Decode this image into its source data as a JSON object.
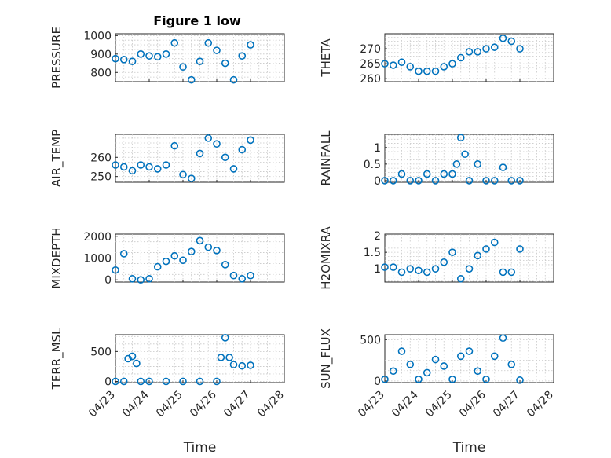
{
  "figure": {
    "title": "Figure 1 low",
    "marker_color": "#0072BD",
    "x_ticks": [
      "04/23",
      "04/24",
      "04/25",
      "04/26",
      "04/27",
      "04/28"
    ],
    "x_label": "Time"
  },
  "chart_data": [
    {
      "type": "scatter",
      "ylabel": "PRESSURE",
      "title": "Figure 1 low",
      "xlim": [
        "04/23",
        "04/28"
      ],
      "ylim": [
        750,
        1010
      ],
      "yticks": [
        800,
        900,
        1000
      ],
      "grid": true,
      "x": [
        "04/23 00:00",
        "04/23 06:00",
        "04/23 12:00",
        "04/23 18:00",
        "04/24 00:00",
        "04/24 06:00",
        "04/24 12:00",
        "04/24 18:00",
        "04/25 00:00",
        "04/25 06:00",
        "04/25 12:00",
        "04/25 18:00",
        "04/26 00:00",
        "04/26 06:00",
        "04/26 12:00",
        "04/26 18:00",
        "04/27 00:00"
      ],
      "y": [
        875,
        870,
        860,
        900,
        890,
        885,
        900,
        960,
        830,
        760,
        860,
        960,
        920,
        850,
        760,
        890,
        950
      ]
    },
    {
      "type": "scatter",
      "ylabel": "THETA",
      "xlim": [
        "04/23",
        "04/28"
      ],
      "ylim": [
        259,
        275
      ],
      "yticks": [
        260,
        265,
        270
      ],
      "grid": true,
      "x": [
        "04/23 00:00",
        "04/23 06:00",
        "04/23 12:00",
        "04/23 18:00",
        "04/24 00:00",
        "04/24 06:00",
        "04/24 12:00",
        "04/24 18:00",
        "04/25 00:00",
        "04/25 06:00",
        "04/25 12:00",
        "04/25 18:00",
        "04/26 00:00",
        "04/26 06:00",
        "04/26 12:00",
        "04/26 18:00",
        "04/27 00:00"
      ],
      "y": [
        265,
        264.5,
        265.5,
        264,
        262.5,
        262.5,
        262.5,
        264,
        265,
        267,
        269,
        269,
        270,
        270.5,
        273.5,
        272.5,
        270
      ]
    },
    {
      "type": "scatter",
      "ylabel": "AIR_TEMP",
      "xlim": [
        "04/23",
        "04/28"
      ],
      "ylim": [
        247,
        272
      ],
      "yticks": [
        250,
        260
      ],
      "grid": true,
      "x": [
        "04/23 00:00",
        "04/23 06:00",
        "04/23 12:00",
        "04/23 18:00",
        "04/24 00:00",
        "04/24 06:00",
        "04/24 12:00",
        "04/24 18:00",
        "04/25 00:00",
        "04/25 06:00",
        "04/25 12:00",
        "04/25 18:00",
        "04/26 00:00",
        "04/26 06:00",
        "04/26 12:00",
        "04/26 18:00",
        "04/27 00:00"
      ],
      "y": [
        256,
        255,
        253,
        256,
        255,
        254,
        256,
        266,
        251,
        249,
        262,
        270,
        267,
        260,
        254,
        264,
        269
      ]
    },
    {
      "type": "scatter",
      "ylabel": "RAINFALL",
      "xlim": [
        "04/23",
        "04/28"
      ],
      "ylim": [
        -0.05,
        1.4
      ],
      "yticks": [
        0,
        0.5,
        1
      ],
      "grid": true,
      "x": [
        "04/23 00:00",
        "04/23 06:00",
        "04/23 12:00",
        "04/23 18:00",
        "04/24 00:00",
        "04/24 06:00",
        "04/24 12:00",
        "04/24 18:00",
        "04/25 00:00",
        "04/25 03:00",
        "04/25 06:00",
        "04/25 09:00",
        "04/25 12:00",
        "04/25 18:00",
        "04/26 00:00",
        "04/26 06:00",
        "04/26 12:00",
        "04/26 18:00",
        "04/27 00:00"
      ],
      "y": [
        0,
        0,
        0.2,
        0,
        0,
        0.2,
        0,
        0.2,
        0.2,
        0.5,
        1.3,
        0.8,
        0,
        0.5,
        0,
        0,
        0.4,
        0,
        0
      ]
    },
    {
      "type": "scatter",
      "ylabel": "MIXDEPTH",
      "xlim": [
        "04/23",
        "04/28"
      ],
      "ylim": [
        -100,
        2100
      ],
      "yticks": [
        0,
        1000,
        2000
      ],
      "grid": true,
      "x": [
        "04/23 00:00",
        "04/23 06:00",
        "04/23 12:00",
        "04/23 18:00",
        "04/24 00:00",
        "04/24 06:00",
        "04/24 12:00",
        "04/24 18:00",
        "04/25 00:00",
        "04/25 06:00",
        "04/25 12:00",
        "04/25 18:00",
        "04/26 00:00",
        "04/26 06:00",
        "04/26 12:00",
        "04/26 18:00",
        "04/27 00:00"
      ],
      "y": [
        450,
        1200,
        50,
        0,
        50,
        600,
        850,
        1100,
        900,
        1300,
        1800,
        1500,
        1350,
        700,
        200,
        50,
        200
      ]
    },
    {
      "type": "scatter",
      "ylabel": "H2OMIXRA",
      "xlim": [
        "04/23",
        "04/28"
      ],
      "ylim": [
        0.6,
        2.05
      ],
      "yticks": [
        1,
        1.5,
        2
      ],
      "grid": true,
      "x": [
        "04/23 00:00",
        "04/23 06:00",
        "04/23 12:00",
        "04/23 18:00",
        "04/24 00:00",
        "04/24 06:00",
        "04/24 12:00",
        "04/24 18:00",
        "04/25 00:00",
        "04/25 06:00",
        "04/25 12:00",
        "04/25 18:00",
        "04/26 00:00",
        "04/26 06:00",
        "04/26 12:00",
        "04/26 18:00",
        "04/27 00:00"
      ],
      "y": [
        1.05,
        1.05,
        0.9,
        1.0,
        0.95,
        0.9,
        1.0,
        1.2,
        1.5,
        0.7,
        1.0,
        1.4,
        1.6,
        1.8,
        0.9,
        0.9,
        1.6
      ]
    },
    {
      "type": "scatter",
      "ylabel": "TERR_MSL",
      "xlim": [
        "04/23",
        "04/28"
      ],
      "ylim": [
        -20,
        780
      ],
      "yticks": [
        0,
        500
      ],
      "grid": true,
      "x": [
        "04/23 00:00",
        "04/23 06:00",
        "04/23 09:00",
        "04/23 12:00",
        "04/23 15:00",
        "04/23 18:00",
        "04/24 00:00",
        "04/24 12:00",
        "04/25 00:00",
        "04/25 12:00",
        "04/26 00:00",
        "04/26 03:00",
        "04/26 06:00",
        "04/26 09:00",
        "04/26 12:00",
        "04/26 18:00",
        "04/27 00:00"
      ],
      "y": [
        0,
        0,
        380,
        420,
        300,
        0,
        0,
        0,
        0,
        0,
        0,
        400,
        730,
        400,
        280,
        260,
        270
      ]
    },
    {
      "type": "scatter",
      "ylabel": "SUN_FLUX",
      "xlim": [
        "04/23",
        "04/28"
      ],
      "ylim": [
        -20,
        560
      ],
      "yticks": [
        0,
        500
      ],
      "grid": true,
      "x": [
        "04/23 00:00",
        "04/23 06:00",
        "04/23 12:00",
        "04/23 18:00",
        "04/24 00:00",
        "04/24 06:00",
        "04/24 12:00",
        "04/24 18:00",
        "04/25 00:00",
        "04/25 06:00",
        "04/25 12:00",
        "04/25 18:00",
        "04/26 00:00",
        "04/26 06:00",
        "04/26 12:00",
        "04/26 18:00",
        "04/27 00:00"
      ],
      "y": [
        20,
        120,
        360,
        200,
        20,
        100,
        260,
        180,
        20,
        300,
        360,
        120,
        20,
        300,
        520,
        200,
        10
      ]
    }
  ]
}
